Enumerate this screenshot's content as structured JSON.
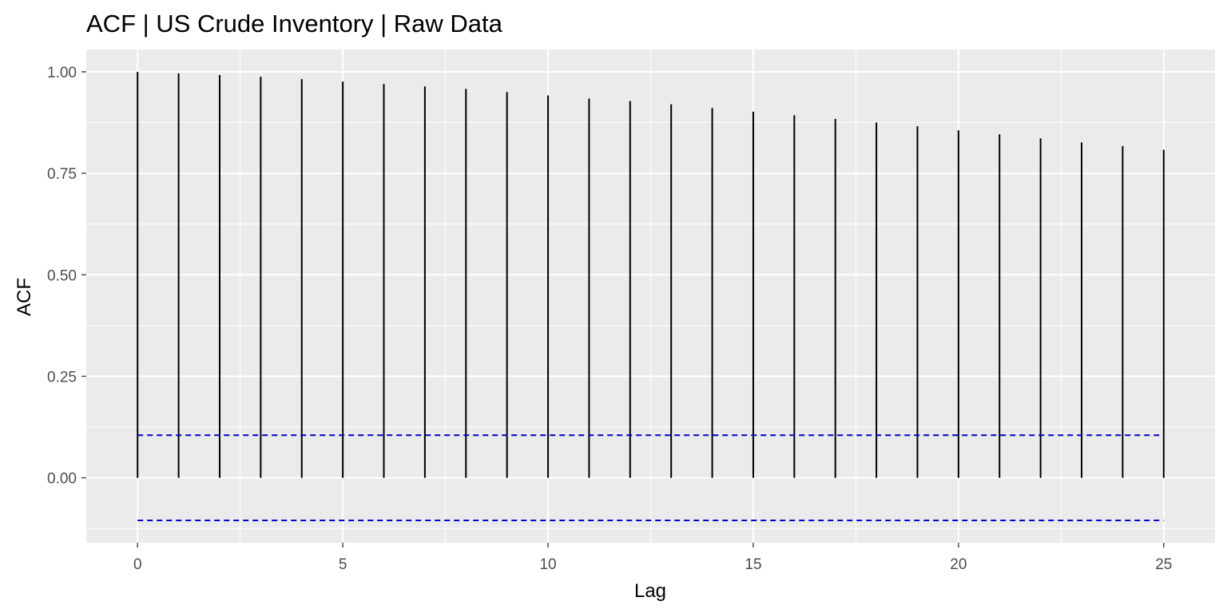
{
  "chart_data": {
    "type": "bar",
    "title": "ACF | US Crude Inventory | Raw Data",
    "xlabel": "Lag",
    "ylabel": "ACF",
    "x": [
      0,
      1,
      2,
      3,
      4,
      5,
      6,
      7,
      8,
      9,
      10,
      11,
      12,
      13,
      14,
      15,
      16,
      17,
      18,
      19,
      20,
      21,
      22,
      23,
      24,
      25
    ],
    "values": [
      1.0,
      0.996,
      0.992,
      0.988,
      0.982,
      0.976,
      0.97,
      0.964,
      0.958,
      0.95,
      0.942,
      0.934,
      0.928,
      0.92,
      0.911,
      0.902,
      0.893,
      0.884,
      0.875,
      0.866,
      0.856,
      0.846,
      0.836,
      0.826,
      0.817,
      0.808
    ],
    "confidence_bounds": [
      0.105,
      -0.105
    ],
    "xlim": [
      -1.25,
      26.25
    ],
    "ylim": [
      -0.16,
      1.055
    ],
    "x_ticks": [
      0,
      5,
      10,
      15,
      20,
      25
    ],
    "y_ticks": [
      0.0,
      0.25,
      0.5,
      0.75,
      1.0
    ],
    "x_tick_labels": [
      "0",
      "5",
      "10",
      "15",
      "20",
      "25"
    ],
    "y_tick_labels": [
      "0.00",
      "0.25",
      "0.50",
      "0.75",
      "1.00"
    ],
    "grid": true,
    "colors": {
      "panel": "#ebebeb",
      "grid": "#ffffff",
      "bars": "#000000",
      "confidence": "#0000cc",
      "ticks": "#4d4d4d"
    }
  }
}
